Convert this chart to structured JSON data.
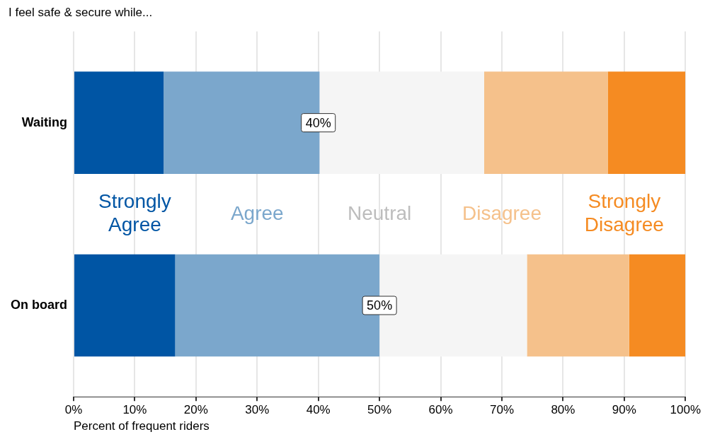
{
  "chart_data": {
    "type": "bar",
    "orientation": "horizontal",
    "stacked": true,
    "title": "I feel safe & secure while...",
    "xlabel": "Percent of frequent riders",
    "categories": [
      "Waiting",
      "On board"
    ],
    "series": [
      {
        "name": "Strongly Agree",
        "color": "#0055a4",
        "values": [
          14.7,
          16.6
        ]
      },
      {
        "name": "Agree",
        "color": "#7ba7cc",
        "values": [
          25.5,
          33.4
        ]
      },
      {
        "name": "Neutral",
        "color": "#f5f5f5",
        "values": [
          26.9,
          24.1
        ]
      },
      {
        "name": "Disagree",
        "color": "#f5c18b",
        "values": [
          20.2,
          16.7
        ]
      },
      {
        "name": "Strongly Disagree",
        "color": "#f58b22",
        "values": [
          12.7,
          9.2
        ]
      }
    ],
    "xlim": [
      0,
      100
    ],
    "xticks": [
      {
        "value": 0,
        "label": "0%"
      },
      {
        "value": 10,
        "label": "10%"
      },
      {
        "value": 20,
        "label": "20%"
      },
      {
        "value": 30,
        "label": "30%"
      },
      {
        "value": 40,
        "label": "40%"
      },
      {
        "value": 50,
        "label": "50%"
      },
      {
        "value": 60,
        "label": "60%"
      },
      {
        "value": 70,
        "label": "70%"
      },
      {
        "value": 80,
        "label": "80%"
      },
      {
        "value": 90,
        "label": "90%"
      },
      {
        "value": 100,
        "label": "100%"
      }
    ],
    "annotations": [
      {
        "text": "40%",
        "x": 40,
        "y": "Waiting"
      },
      {
        "text": "50%",
        "x": 50,
        "y": "On board"
      }
    ],
    "grid": "x",
    "legend": "center"
  }
}
